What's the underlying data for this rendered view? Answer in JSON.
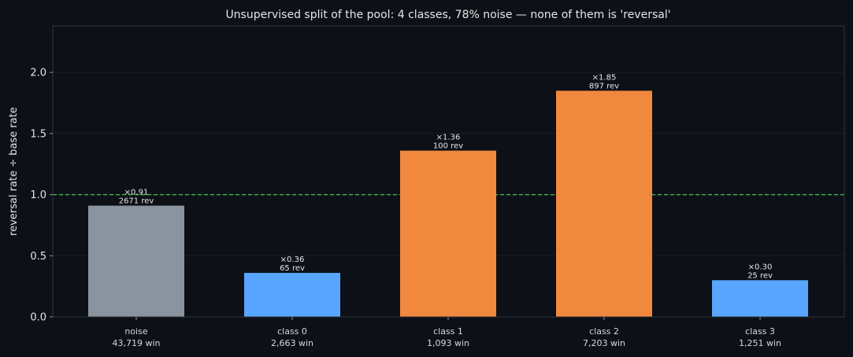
{
  "chart_data": {
    "type": "bar",
    "title": "Unsupervised split of the pool: 4 classes, 78% noise — none of them is 'reversal'",
    "xlabel": "",
    "ylabel": "reversal rate ÷ base rate",
    "ylim": [
      0,
      2.38
    ],
    "yticks": [
      "0.0",
      "0.5",
      "1.0",
      "1.5",
      "2.0"
    ],
    "grid": true,
    "reference_line": {
      "y": 1.0,
      "color": "#3fb950",
      "style": "dashed"
    },
    "categories": [
      "noise",
      "class 0",
      "class 1",
      "class 2",
      "class 3"
    ],
    "category_sublabels": [
      "43,719 win",
      "2,663 win",
      "1,093 win",
      "7,203 win",
      "1,251 win"
    ],
    "values": [
      0.91,
      0.36,
      1.36,
      1.85,
      0.3
    ],
    "value_labels": [
      "×0.91",
      "×0.36",
      "×1.36",
      "×1.85",
      "×0.30"
    ],
    "count_labels": [
      "2671 rev",
      "65 rev",
      "100 rev",
      "897 rev",
      "25 rev"
    ],
    "bar_colors": [
      "#8b949e",
      "#58a6ff",
      "#f0883e",
      "#f0883e",
      "#58a6ff"
    ]
  },
  "colors": {
    "background": "#0d1017",
    "axes_border": "#30363d",
    "grid": "#1b2029"
  }
}
